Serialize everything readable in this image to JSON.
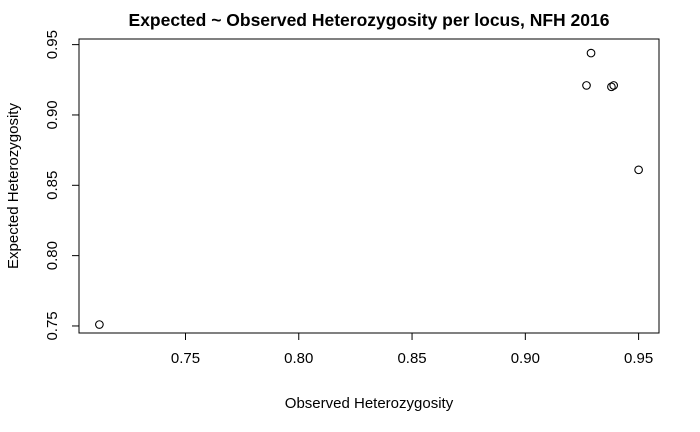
{
  "chart_data": {
    "type": "scatter",
    "title": "Expected ~ Observed Heterozygosity per locus, NFH 2016",
    "xlabel": "Observed Heterozygosity",
    "ylabel": "Expected Heterozygosity",
    "xlim": [
      0.703,
      0.959
    ],
    "ylim": [
      0.745,
      0.954
    ],
    "x_ticks": [
      "0.75",
      "0.80",
      "0.85",
      "0.90",
      "0.95"
    ],
    "y_ticks": [
      "0.75",
      "0.80",
      "0.85",
      "0.90",
      "0.95"
    ],
    "points": [
      {
        "x": 0.712,
        "y": 0.751
      },
      {
        "x": 0.927,
        "y": 0.921
      },
      {
        "x": 0.929,
        "y": 0.944
      },
      {
        "x": 0.938,
        "y": 0.92
      },
      {
        "x": 0.939,
        "y": 0.921
      },
      {
        "x": 0.95,
        "y": 0.861
      }
    ],
    "marker": "open-circle",
    "grid": false,
    "legend": "none",
    "colors": {
      "points": "#000000",
      "axes": "#000000",
      "background": "#ffffff"
    }
  }
}
